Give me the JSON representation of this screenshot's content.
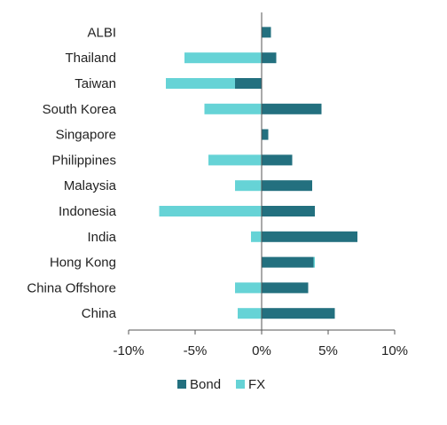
{
  "chart_data": {
    "type": "bar",
    "orientation": "horizontal",
    "stacked": true,
    "categories": [
      "ALBI",
      "Thailand",
      "Taiwan",
      "South Korea",
      "Singapore",
      "Philippines",
      "Malaysia",
      "Indonesia",
      "India",
      "Hong Kong",
      "China Offshore",
      "China"
    ],
    "series": [
      {
        "name": "Bond",
        "color": "#23707f",
        "values": [
          0.7,
          1.1,
          -2.0,
          4.5,
          0.5,
          2.3,
          3.8,
          4.0,
          7.2,
          3.9,
          3.5,
          5.5
        ]
      },
      {
        "name": "FX",
        "color": "#66d3d6",
        "values": [
          0.0,
          -5.8,
          -5.2,
          -4.3,
          0.0,
          -4.0,
          -2.0,
          -7.7,
          -0.8,
          0.1,
          -2.0,
          -1.8
        ]
      }
    ],
    "xlim": [
      -10,
      10
    ],
    "xticks": [
      -10,
      -5,
      0,
      5,
      10
    ],
    "xtick_labels": [
      "-10%",
      "-5%",
      "0%",
      "5%",
      "10%"
    ],
    "title": "",
    "xlabel": "",
    "ylabel": "",
    "grid": false,
    "legend_position": "bottom"
  }
}
